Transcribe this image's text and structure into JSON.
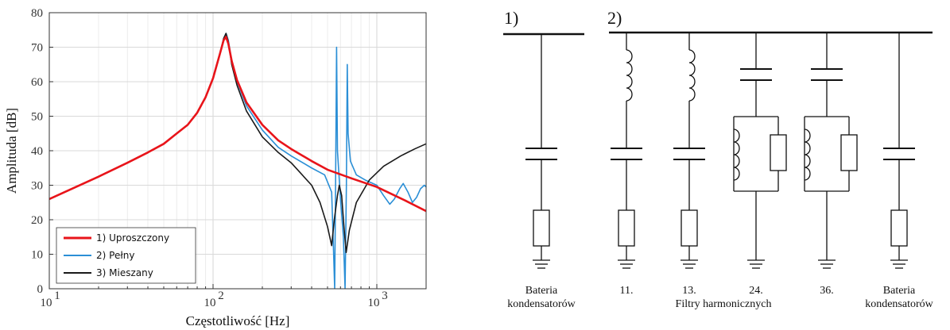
{
  "chart_data": {
    "type": "line",
    "xscale": "log",
    "xlim": [
      10,
      2000
    ],
    "ylim": [
      0,
      80
    ],
    "xlabel": "Częstotliwość [Hz]",
    "ylabel": "Amplituda [dB]",
    "grid": true,
    "legend_position": "bottom-left",
    "x_ticks": [
      {
        "value": 10,
        "base": "10",
        "exp": "1"
      },
      {
        "value": 100,
        "base": "10",
        "exp": "2"
      },
      {
        "value": 1000,
        "base": "10",
        "exp": "3"
      }
    ],
    "y_ticks": [
      0,
      10,
      20,
      30,
      40,
      50,
      60,
      70,
      80
    ],
    "series": [
      {
        "name": "1) Uproszczony",
        "color": "#e8141a",
        "points": [
          [
            10,
            26
          ],
          [
            20,
            32.5
          ],
          [
            30,
            36.5
          ],
          [
            40,
            39.5
          ],
          [
            50,
            42
          ],
          [
            60,
            45
          ],
          [
            70,
            47.5
          ],
          [
            80,
            51
          ],
          [
            90,
            55.5
          ],
          [
            100,
            61
          ],
          [
            110,
            68
          ],
          [
            116,
            72
          ],
          [
            120,
            73
          ],
          [
            124,
            71
          ],
          [
            130,
            66
          ],
          [
            140,
            60.5
          ],
          [
            160,
            54
          ],
          [
            200,
            47.5
          ],
          [
            250,
            43
          ],
          [
            300,
            40.5
          ],
          [
            400,
            37
          ],
          [
            500,
            34.5
          ],
          [
            700,
            32
          ],
          [
            1000,
            29.5
          ],
          [
            1500,
            25.5
          ],
          [
            2000,
            22.5
          ]
        ]
      },
      {
        "name": "2) Pełny",
        "color": "#2b8fd6",
        "points": [
          [
            10,
            26
          ],
          [
            20,
            32.5
          ],
          [
            30,
            36.5
          ],
          [
            40,
            39.5
          ],
          [
            50,
            42
          ],
          [
            60,
            45
          ],
          [
            70,
            47.5
          ],
          [
            80,
            51
          ],
          [
            90,
            55.5
          ],
          [
            100,
            61
          ],
          [
            110,
            68
          ],
          [
            116,
            72.5
          ],
          [
            120,
            74
          ],
          [
            124,
            72
          ],
          [
            130,
            66
          ],
          [
            140,
            60
          ],
          [
            160,
            53
          ],
          [
            200,
            46
          ],
          [
            250,
            41
          ],
          [
            300,
            38.5
          ],
          [
            400,
            35
          ],
          [
            480,
            33
          ],
          [
            530,
            28
          ],
          [
            545,
            10
          ],
          [
            553,
            0
          ],
          [
            560,
            30
          ],
          [
            568,
            70
          ],
          [
            575,
            40
          ],
          [
            600,
            26
          ],
          [
            625,
            15
          ],
          [
            640,
            0
          ],
          [
            652,
            30
          ],
          [
            660,
            65
          ],
          [
            668,
            45
          ],
          [
            690,
            37
          ],
          [
            750,
            33
          ],
          [
            850,
            31.5
          ],
          [
            1000,
            30
          ],
          [
            1100,
            27
          ],
          [
            1200,
            24.5
          ],
          [
            1280,
            26
          ],
          [
            1380,
            29
          ],
          [
            1450,
            30.5
          ],
          [
            1550,
            28
          ],
          [
            1650,
            25
          ],
          [
            1750,
            26.5
          ],
          [
            1850,
            29
          ],
          [
            1950,
            30
          ],
          [
            2000,
            29.5
          ]
        ]
      },
      {
        "name": "3) Mieszany",
        "color": "#1a1a1a",
        "points": [
          [
            10,
            26
          ],
          [
            20,
            32.5
          ],
          [
            30,
            36.5
          ],
          [
            40,
            39.5
          ],
          [
            50,
            42
          ],
          [
            60,
            45
          ],
          [
            70,
            47.5
          ],
          [
            80,
            51
          ],
          [
            90,
            55.5
          ],
          [
            100,
            61
          ],
          [
            110,
            68
          ],
          [
            116,
            72.5
          ],
          [
            120,
            74
          ],
          [
            124,
            71.5
          ],
          [
            130,
            65
          ],
          [
            140,
            59
          ],
          [
            160,
            51.5
          ],
          [
            200,
            44
          ],
          [
            250,
            39.5
          ],
          [
            300,
            36.5
          ],
          [
            400,
            30
          ],
          [
            450,
            25
          ],
          [
            500,
            18
          ],
          [
            530,
            12.5
          ],
          [
            550,
            20
          ],
          [
            575,
            27
          ],
          [
            590,
            30
          ],
          [
            610,
            27
          ],
          [
            630,
            18
          ],
          [
            650,
            10.5
          ],
          [
            680,
            17
          ],
          [
            750,
            25
          ],
          [
            900,
            31.5
          ],
          [
            1100,
            35.5
          ],
          [
            1400,
            38.5
          ],
          [
            1700,
            40.5
          ],
          [
            2000,
            42
          ]
        ]
      }
    ]
  },
  "diagram": {
    "label_1": "1)",
    "label_2": "2)",
    "captions": {
      "bat1_line1": "Bateria",
      "bat1_line2": "kondensatorów",
      "f11": "11.",
      "f13": "13.",
      "f24": "24.",
      "f36": "36.",
      "filters": "Filtry harmonicznych",
      "bat2_line1": "Bateria",
      "bat2_line2": "kondensatorów"
    }
  }
}
